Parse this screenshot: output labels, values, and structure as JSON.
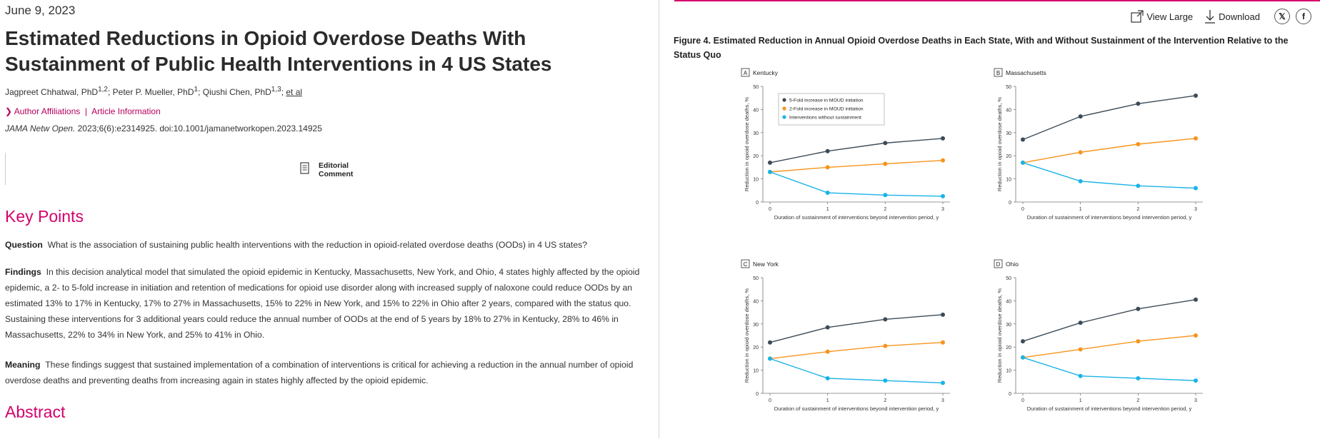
{
  "article": {
    "date": "June 9, 2023",
    "title": "Estimated Reductions in Opioid Overdose Deaths With Sustainment of Public Health Interventions in 4 US States",
    "authors": [
      {
        "name": "Jagpreet Chhatwal, PhD",
        "sup": "1,2"
      },
      {
        "name": "Peter P. Mueller, PhD",
        "sup": "1"
      },
      {
        "name": "Qiushi Chen, PhD",
        "sup": "1,3"
      }
    ],
    "et_al": "et al",
    "author_affiliations": "Author Affiliations",
    "separator": "|",
    "article_information": "Article Information",
    "journal": "JAMA Netw Open.",
    "citation": " 2023;6(6):e2314925. doi:10.1001/jamanetworkopen.2023.14925",
    "editorial_line1": "Editorial",
    "editorial_line2": "Comment",
    "key_points_heading": "Key Points",
    "question_label": "Question",
    "question_text": "What is the association of sustaining public health interventions with the reduction in opioid-related overdose deaths (OODs) in 4 US states?",
    "findings_label": "Findings",
    "findings_text": "In this decision analytical model that simulated the opioid epidemic in Kentucky, Massachusetts, New York, and Ohio, 4 states highly affected by the opioid epidemic, a 2- to 5-fold increase in initiation and retention of medications for opioid use disorder along with increased supply of naloxone could reduce OODs by an estimated 13% to 17% in Kentucky, 17% to 27% in Massachusetts, 15% to 22% in New York, and 15% to 22% in Ohio after 2 years, compared with the status quo. Sustaining these interventions for 3 additional years could reduce the annual number of OODs at the end of 5 years by 18% to 27% in Kentucky, 28% to 46% in Massachusetts, 22% to 34% in New York, and 25% to 41% in Ohio.",
    "meaning_label": "Meaning",
    "meaning_text": "These findings suggest that sustained implementation of a combination of interventions is critical for achieving a reduction in the annual number of opioid overdose deaths and preventing deaths from increasing again in states highly affected by the opioid epidemic.",
    "abstract_heading": "Abstract"
  },
  "figure": {
    "view_large": "View Large",
    "download": "Download",
    "x_icon": "x-social-icon",
    "facebook_icon": "facebook-icon",
    "title": "Figure 4.  Estimated Reduction in Annual Opioid Overdose Deaths in Each State, With and Without Sustainment of the Intervention Relative to the Status Quo"
  },
  "colors": {
    "accent": "#d4006c",
    "series_dark": "#3d4b57",
    "series_orange": "#f7941d",
    "series_blue": "#1ab3e6"
  },
  "chart_data": [
    {
      "type": "line",
      "panel_letter": "A",
      "panel_name": "Kentucky",
      "x": [
        0,
        1,
        2,
        3
      ],
      "xlabel": "Duration of sustainment of interventions beyond intervention period, y",
      "ylabel": "Reduction in opioid overdose deaths, %",
      "ylim": [
        0,
        50
      ],
      "yticks": [
        0,
        10,
        20,
        30,
        40,
        50
      ],
      "legend": "top-left",
      "series": [
        {
          "name": "5-Fold increase in MOUD initiation",
          "color": "#3d4b57",
          "values": [
            17,
            22,
            25.5,
            27.5
          ]
        },
        {
          "name": "2-Fold increase in MOUD initiation",
          "color": "#f7941d",
          "values": [
            13,
            15,
            16.5,
            18
          ]
        },
        {
          "name": "Interventions without sustainment",
          "color": "#1ab3e6",
          "values": [
            13,
            4,
            3,
            2.5
          ]
        }
      ]
    },
    {
      "type": "line",
      "panel_letter": "B",
      "panel_name": "Massachusetts",
      "x": [
        0,
        1,
        2,
        3
      ],
      "xlabel": "Duration of sustainment of interventions beyond intervention period, y",
      "ylabel": "Reduction in opioid overdose deaths, %",
      "ylim": [
        0,
        50
      ],
      "yticks": [
        0,
        10,
        20,
        30,
        40,
        50
      ],
      "series": [
        {
          "color": "#3d4b57",
          "values": [
            27,
            37,
            42.5,
            46
          ]
        },
        {
          "color": "#f7941d",
          "values": [
            17,
            21.5,
            25,
            27.5
          ]
        },
        {
          "color": "#1ab3e6",
          "values": [
            17,
            9,
            7,
            6
          ]
        }
      ]
    },
    {
      "type": "line",
      "panel_letter": "C",
      "panel_name": "New York",
      "x": [
        0,
        1,
        2,
        3
      ],
      "xlabel": "Duration of sustainment of interventions beyond intervention period, y",
      "ylabel": "Reduction in opioid overdose deaths, %",
      "ylim": [
        0,
        50
      ],
      "yticks": [
        0,
        10,
        20,
        30,
        40,
        50
      ],
      "series": [
        {
          "color": "#3d4b57",
          "values": [
            22,
            28.5,
            32,
            34
          ]
        },
        {
          "color": "#f7941d",
          "values": [
            15,
            18,
            20.5,
            22
          ]
        },
        {
          "color": "#1ab3e6",
          "values": [
            15,
            6.5,
            5.5,
            4.5
          ]
        }
      ]
    },
    {
      "type": "line",
      "panel_letter": "D",
      "panel_name": "Ohio",
      "x": [
        0,
        1,
        2,
        3
      ],
      "xlabel": "Duration of sustainment of interventions beyond intervention period, y",
      "ylabel": "Reduction in opioid overdose deaths, %",
      "ylim": [
        0,
        50
      ],
      "yticks": [
        0,
        10,
        20,
        30,
        40,
        50
      ],
      "series": [
        {
          "color": "#3d4b57",
          "values": [
            22.5,
            30.5,
            36.5,
            40.5
          ]
        },
        {
          "color": "#f7941d",
          "values": [
            15.5,
            19,
            22.5,
            25
          ]
        },
        {
          "color": "#1ab3e6",
          "values": [
            15.5,
            7.5,
            6.5,
            5.5
          ]
        }
      ]
    }
  ]
}
